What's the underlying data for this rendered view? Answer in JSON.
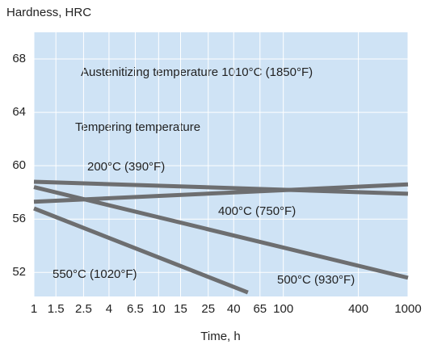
{
  "chart_data": {
    "type": "line",
    "y_label": "Hardness, HRC",
    "x_label": "Time, h",
    "annotations": [
      "Austenitizing temperature 1010°C (1850°F)",
      "Tempering temperature"
    ],
    "xlim": [
      1,
      1000
    ],
    "xticks": [
      1,
      1.5,
      2.5,
      4,
      6.5,
      10,
      15,
      25,
      40,
      65,
      100,
      400,
      1000
    ],
    "log_x": true,
    "ylim": [
      50.2,
      70
    ],
    "yticks": [
      52,
      56,
      60,
      64,
      68
    ],
    "grid": true,
    "series": [
      {
        "name": "200°C (390°F)",
        "color": "#6d6e70",
        "x": [
          1,
          1000
        ],
        "values": [
          58.8,
          57.9
        ]
      },
      {
        "name": "400°C (750°F)",
        "color": "#6d6e70",
        "x": [
          1,
          1000
        ],
        "values": [
          57.3,
          58.6
        ]
      },
      {
        "name": "500°C (930°F)",
        "color": "#6d6e70",
        "x": [
          1,
          1000
        ],
        "values": [
          58.4,
          51.6
        ]
      },
      {
        "name": "550°C (1020°F)",
        "color": "#6d6e70",
        "x": [
          1,
          52
        ],
        "values": [
          56.8,
          50.5
        ]
      }
    ]
  }
}
